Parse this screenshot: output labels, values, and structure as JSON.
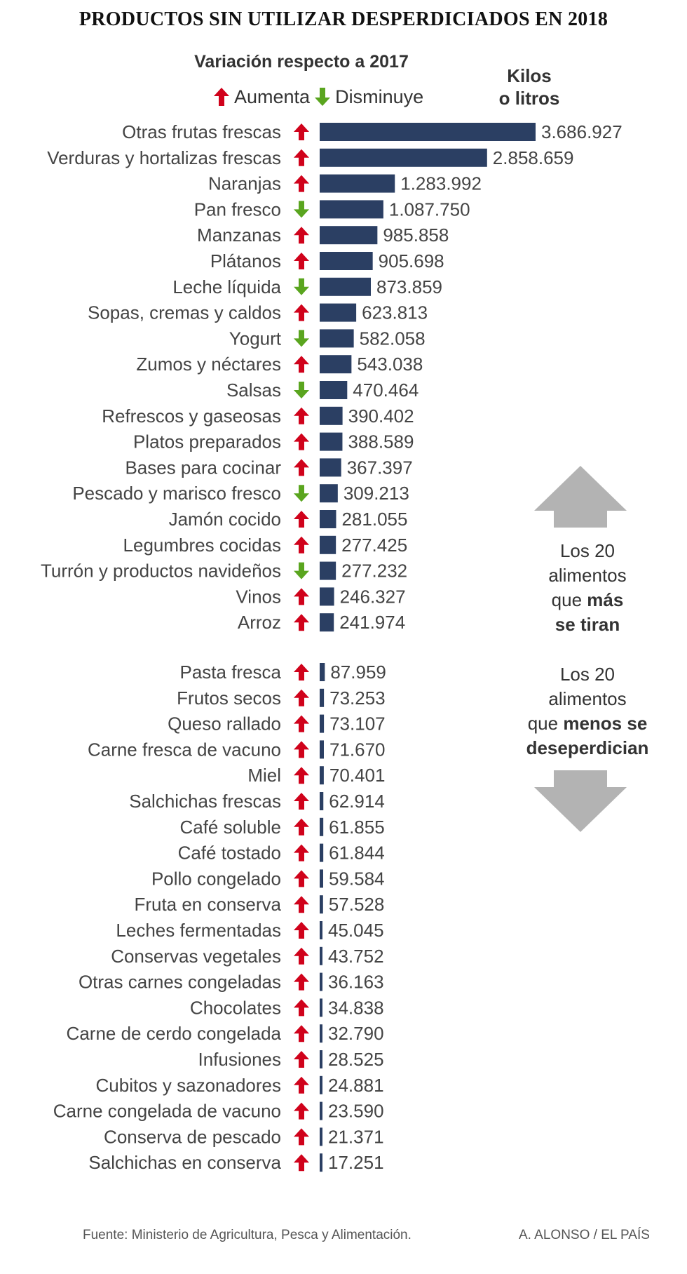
{
  "title": "PRODUCTOS SIN UTILIZAR DESPERDICIADOS EN 2018",
  "colors": {
    "bar": "#2b3f63",
    "up": "#d0021b",
    "down": "#5aa51f",
    "big_arrow": "#b3b3b3",
    "label": "#444444"
  },
  "legend": {
    "heading": "Variación respecto a 2017",
    "up_label": "Aumenta",
    "down_label": "Disminuye",
    "up_icon": "arrow-up-icon",
    "down_icon": "arrow-down-icon"
  },
  "unit_label": {
    "line1": "Kilos",
    "line2": "o litros"
  },
  "top_note": {
    "line1": "Los 20",
    "line2": "alimentos",
    "line3_plain": "que",
    "line3_bold": "más",
    "line4_bold": "se tiran"
  },
  "bottom_note": {
    "line1": "Los 20",
    "line2": "alimentos",
    "line3_plain": "que",
    "line3_bold": "menos se",
    "line4_bold": "deseperdician"
  },
  "footer": {
    "source": "Fuente: Ministerio de Agricultura, Pesca y Alimentación.",
    "credit": "A. ALONSO / EL PAÍS"
  },
  "chart_data": {
    "type": "bar",
    "orientation": "horizontal",
    "value_unit": "kilos o litros",
    "groups": [
      {
        "id": "top20",
        "items": [
          {
            "label": "Otras frutas frescas",
            "value": 3686927,
            "value_text": "3.686.927",
            "change": "up"
          },
          {
            "label": "Verduras y hortalizas frescas",
            "value": 2858659,
            "value_text": "2.858.659",
            "change": "up"
          },
          {
            "label": "Naranjas",
            "value": 1283992,
            "value_text": "1.283.992",
            "change": "up"
          },
          {
            "label": "Pan fresco",
            "value": 1087750,
            "value_text": "1.087.750",
            "change": "down"
          },
          {
            "label": "Manzanas",
            "value": 985858,
            "value_text": "985.858",
            "change": "up"
          },
          {
            "label": "Plátanos",
            "value": 905698,
            "value_text": "905.698",
            "change": "up"
          },
          {
            "label": "Leche líquida",
            "value": 873859,
            "value_text": "873.859",
            "change": "down"
          },
          {
            "label": "Sopas, cremas y caldos",
            "value": 623813,
            "value_text": "623.813",
            "change": "up"
          },
          {
            "label": "Yogurt",
            "value": 582058,
            "value_text": "582.058",
            "change": "down"
          },
          {
            "label": "Zumos y néctares",
            "value": 543038,
            "value_text": "543.038",
            "change": "up"
          },
          {
            "label": "Salsas",
            "value": 470464,
            "value_text": "470.464",
            "change": "down"
          },
          {
            "label": "Refrescos y gaseosas",
            "value": 390402,
            "value_text": "390.402",
            "change": "up"
          },
          {
            "label": "Platos preparados",
            "value": 388589,
            "value_text": "388.589",
            "change": "up"
          },
          {
            "label": "Bases para cocinar",
            "value": 367397,
            "value_text": "367.397",
            "change": "up"
          },
          {
            "label": "Pescado y marisco fresco",
            "value": 309213,
            "value_text": "309.213",
            "change": "down"
          },
          {
            "label": "Jamón cocido",
            "value": 281055,
            "value_text": "281.055",
            "change": "up"
          },
          {
            "label": "Legumbres cocidas",
            "value": 277425,
            "value_text": "277.425",
            "change": "up"
          },
          {
            "label": "Turrón y productos navideños",
            "value": 277232,
            "value_text": "277.232",
            "change": "down"
          },
          {
            "label": "Vinos",
            "value": 246327,
            "value_text": "246.327",
            "change": "up"
          },
          {
            "label": "Arroz",
            "value": 241974,
            "value_text": "241.974",
            "change": "up"
          }
        ]
      },
      {
        "id": "bottom20",
        "items": [
          {
            "label": "Pasta fresca",
            "value": 87959,
            "value_text": "87.959",
            "change": "up"
          },
          {
            "label": "Frutos secos",
            "value": 73253,
            "value_text": "73.253",
            "change": "up"
          },
          {
            "label": "Queso rallado",
            "value": 73107,
            "value_text": "73.107",
            "change": "up"
          },
          {
            "label": "Carne fresca de vacuno",
            "value": 71670,
            "value_text": "71.670",
            "change": "up"
          },
          {
            "label": "Miel",
            "value": 70401,
            "value_text": "70.401",
            "change": "up"
          },
          {
            "label": "Salchichas frescas",
            "value": 62914,
            "value_text": "62.914",
            "change": "up"
          },
          {
            "label": "Café soluble",
            "value": 61855,
            "value_text": "61.855",
            "change": "up"
          },
          {
            "label": "Café tostado",
            "value": 61844,
            "value_text": "61.844",
            "change": "up"
          },
          {
            "label": "Pollo congelado",
            "value": 59584,
            "value_text": "59.584",
            "change": "up"
          },
          {
            "label": "Fruta en conserva",
            "value": 57528,
            "value_text": "57.528",
            "change": "up"
          },
          {
            "label": "Leches fermentadas",
            "value": 45045,
            "value_text": "45.045",
            "change": "up"
          },
          {
            "label": "Conservas vegetales",
            "value": 43752,
            "value_text": "43.752",
            "change": "up"
          },
          {
            "label": "Otras carnes congeladas",
            "value": 36163,
            "value_text": "36.163",
            "change": "up"
          },
          {
            "label": "Chocolates",
            "value": 34838,
            "value_text": "34.838",
            "change": "up"
          },
          {
            "label": "Carne de cerdo congelada",
            "value": 32790,
            "value_text": "32.790",
            "change": "up"
          },
          {
            "label": "Infusiones",
            "value": 28525,
            "value_text": "28.525",
            "change": "up"
          },
          {
            "label": "Cubitos  y sazonadores",
            "value": 24881,
            "value_text": "24.881",
            "change": "up"
          },
          {
            "label": "Carne congelada de vacuno",
            "value": 23590,
            "value_text": "23.590",
            "change": "up"
          },
          {
            "label": "Conserva de pescado",
            "value": 21371,
            "value_text": "21.371",
            "change": "up"
          },
          {
            "label": "Salchichas en conserva",
            "value": 17251,
            "value_text": "17.251",
            "change": "up"
          }
        ]
      }
    ]
  }
}
